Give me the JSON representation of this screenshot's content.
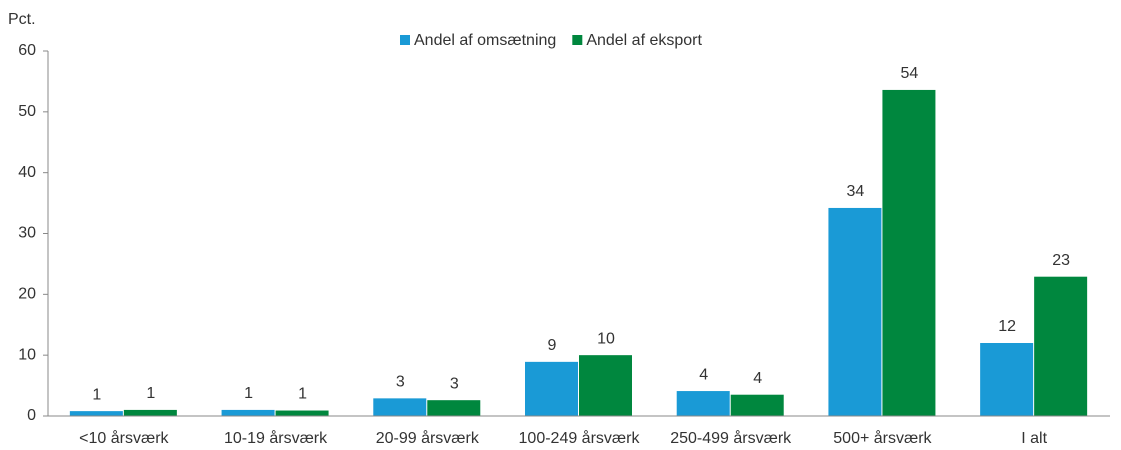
{
  "chart_data": {
    "type": "bar",
    "y_label": "Pct.",
    "categories": [
      "<10 årsværk",
      "10-19 årsværk",
      "20-99 årsværk",
      "100-249 årsværk",
      "250-499 årsværk",
      "500+ årsværk",
      "I alt"
    ],
    "series": [
      {
        "name": "Andel af omsætning",
        "color": "#1a9ad6",
        "values": [
          0.8,
          1.0,
          2.9,
          8.9,
          4.1,
          34.2,
          12.0
        ],
        "value_labels": [
          "1",
          "1",
          "3",
          "9",
          "4",
          "34",
          "12"
        ]
      },
      {
        "name": "Andel af eksport",
        "color": "#00873e",
        "values": [
          1.0,
          0.9,
          2.6,
          10.0,
          3.5,
          53.6,
          22.9
        ],
        "value_labels": [
          "1",
          "1",
          "3",
          "10",
          "4",
          "54",
          "23"
        ]
      }
    ],
    "ylim": [
      0,
      60
    ],
    "yticks": [
      0,
      10,
      20,
      30,
      40,
      50,
      60
    ],
    "grid": false,
    "legend": "top"
  }
}
